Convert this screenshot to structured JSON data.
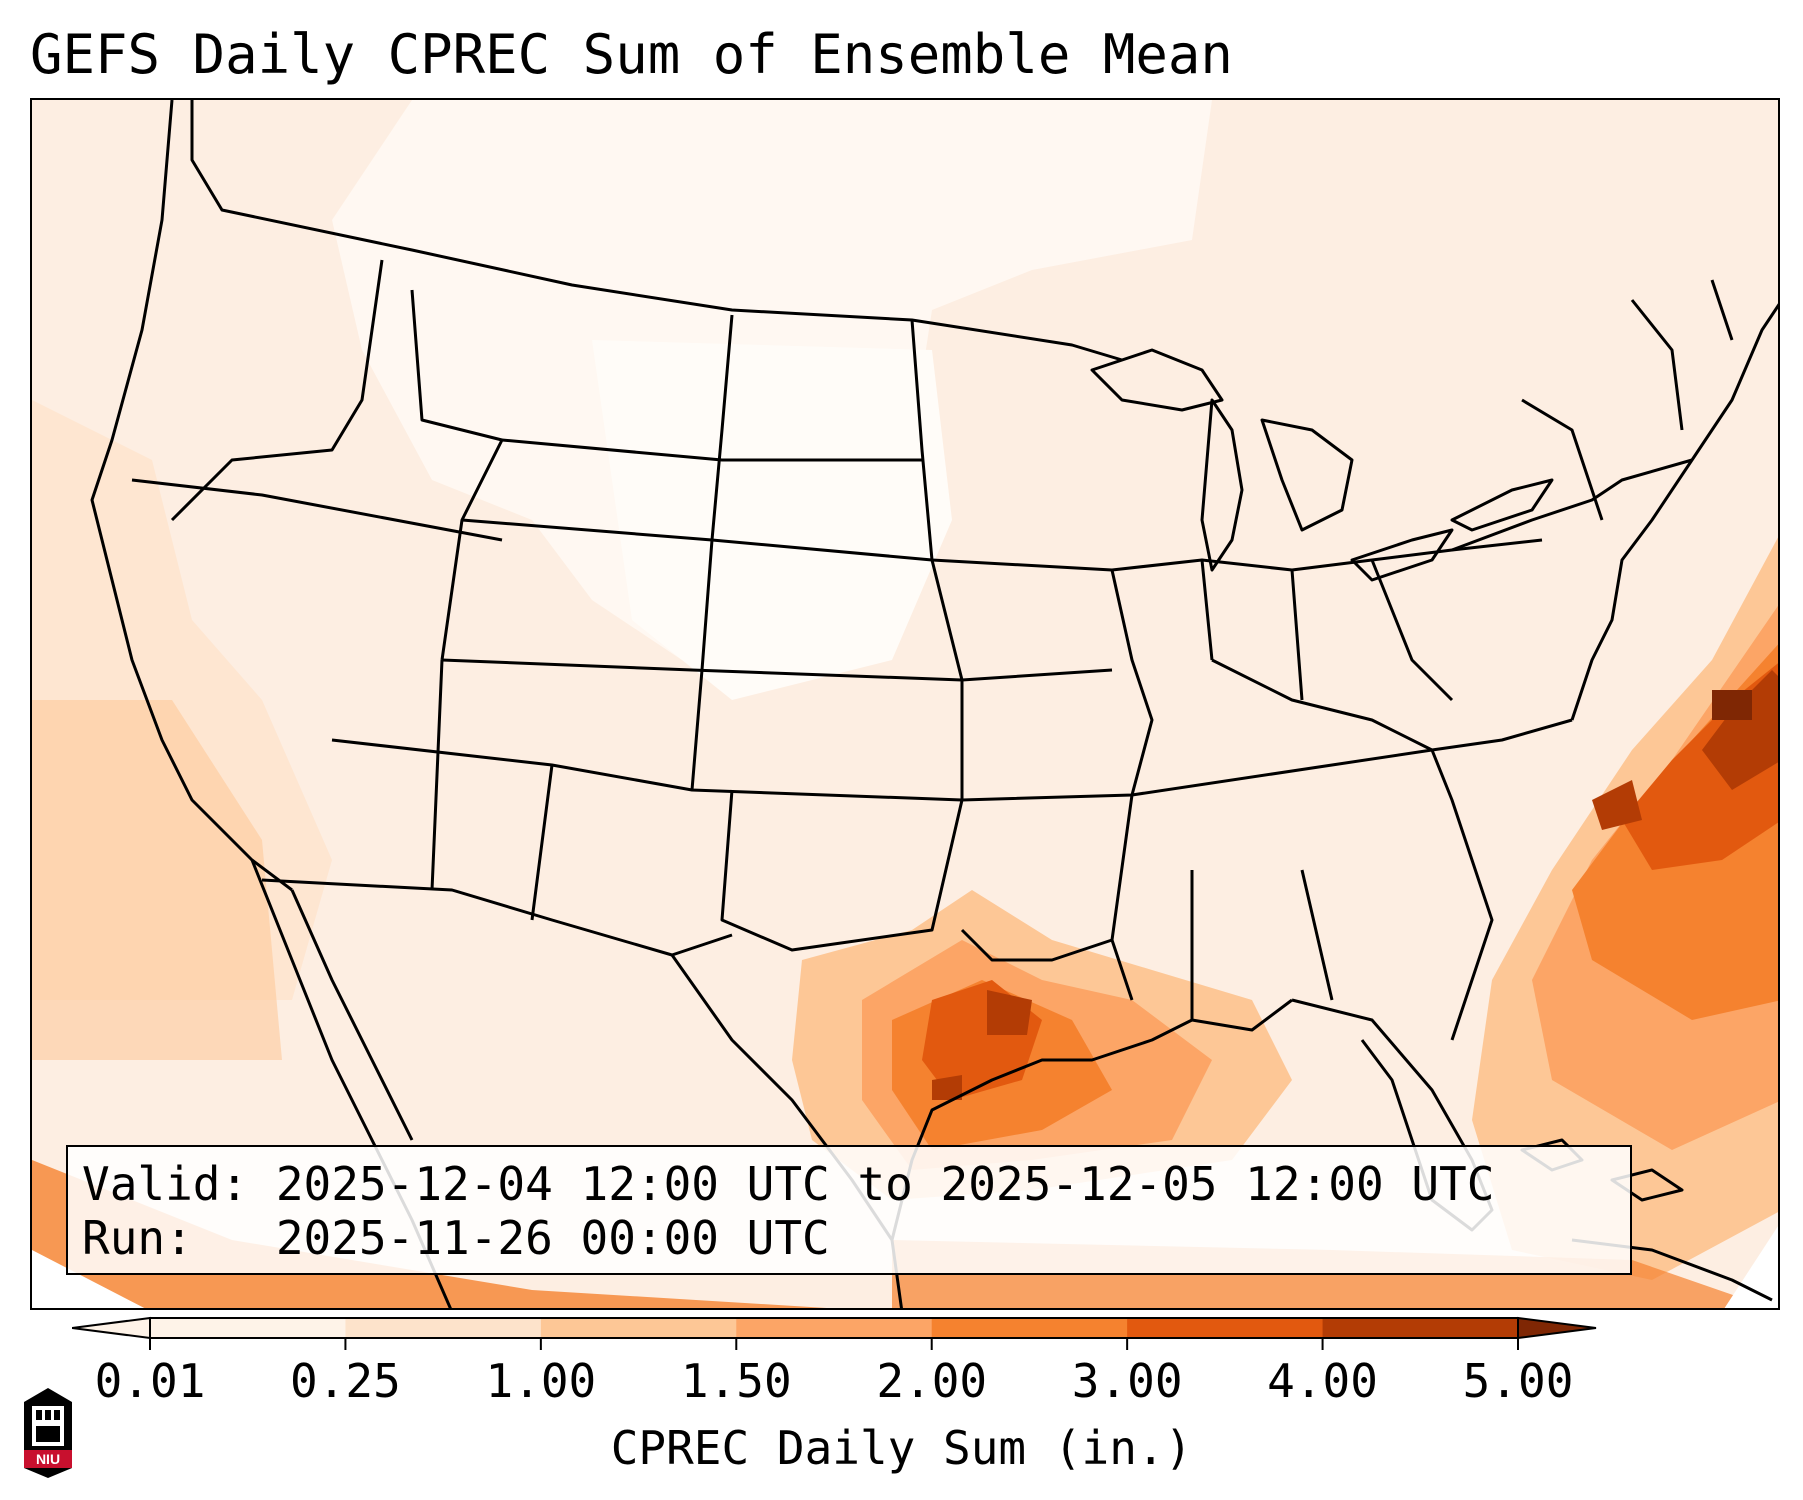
{
  "title": "GEFS Daily CPREC Sum of Ensemble Mean",
  "info": {
    "valid": "Valid: 2025-12-04 12:00 UTC to 2025-12-05 12:00 UTC",
    "run": "Run:   2025-11-26 00:00 UTC"
  },
  "colorbar": {
    "label": "CPREC Daily Sum (in.)",
    "ticks": [
      "0.01",
      "0.25",
      "1.00",
      "1.50",
      "2.00",
      "3.00",
      "4.00",
      "5.00"
    ],
    "colors": [
      "#fef3e8",
      "#fde3cb",
      "#fdc796",
      "#fca566",
      "#f5822f",
      "#e2590f",
      "#b33c05",
      "#7f2704"
    ],
    "extend": "both"
  },
  "map": {
    "region": "Contiguous United States",
    "variable": "CPREC",
    "max_area": "Texas / Louisiana Gulf coast and western Atlantic east of the Carolinas"
  },
  "logo": {
    "text": "NIU"
  }
}
